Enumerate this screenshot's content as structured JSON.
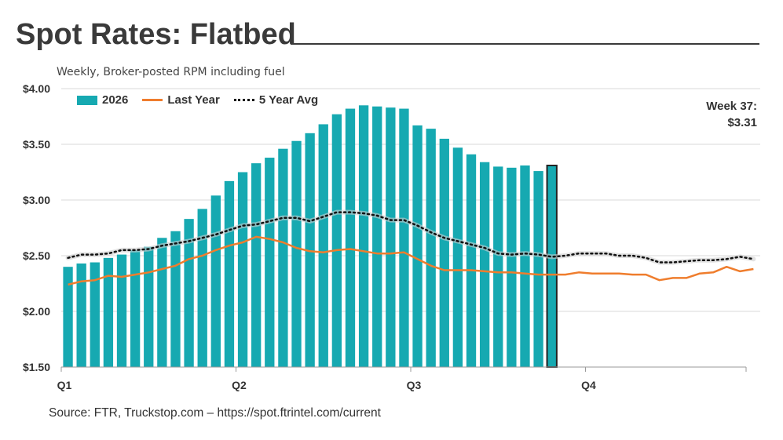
{
  "header": {
    "title": "Spot Rates: Flatbed",
    "subtitle": "Weekly, Broker-posted RPM including fuel"
  },
  "callout": {
    "line1": "Week 37:",
    "line2": "$3.31"
  },
  "source": "Source: FTR, Truckstop.com – https://spot.ftrintel.com/current",
  "colors": {
    "bars": "#16a9b1",
    "last_year": "#ef7d2d",
    "five_year": "#111111",
    "highlight_border": "#222222"
  },
  "legend": {
    "bars_label": "2026",
    "last_year_label": "Last Year",
    "five_year_label": "5 Year Avg"
  },
  "chart_data": {
    "type": "bar",
    "ylim": [
      1.5,
      4.0
    ],
    "y_ticks": [
      "$1.50",
      "$2.00",
      "$2.50",
      "$3.00",
      "$3.50",
      "$4.00"
    ],
    "y_tick_values": [
      1.5,
      2.0,
      2.5,
      3.0,
      3.5,
      4.0
    ],
    "x_ticks": [
      "Q1",
      "Q2",
      "Q3",
      "Q4"
    ],
    "x_tick_weeks": [
      1,
      14,
      27,
      40
    ],
    "grid": true,
    "legend_position": "top-left",
    "highlight_week": 37,
    "series": [
      {
        "name": "2026",
        "type": "bar",
        "values": [
          2.4,
          2.43,
          2.44,
          2.48,
          2.51,
          2.55,
          2.58,
          2.66,
          2.72,
          2.83,
          2.92,
          3.04,
          3.17,
          3.25,
          3.33,
          3.38,
          3.46,
          3.53,
          3.6,
          3.68,
          3.77,
          3.82,
          3.85,
          3.84,
          3.83,
          3.82,
          3.67,
          3.64,
          3.55,
          3.47,
          3.41,
          3.34,
          3.3,
          3.29,
          3.31,
          3.26,
          3.31
        ]
      },
      {
        "name": "Last Year",
        "type": "line",
        "values": [
          2.24,
          2.27,
          2.28,
          2.32,
          2.31,
          2.33,
          2.35,
          2.38,
          2.41,
          2.47,
          2.5,
          2.55,
          2.59,
          2.62,
          2.67,
          2.65,
          2.62,
          2.57,
          2.54,
          2.53,
          2.55,
          2.56,
          2.54,
          2.52,
          2.52,
          2.53,
          2.47,
          2.41,
          2.37,
          2.37,
          2.37,
          2.36,
          2.35,
          2.35,
          2.34,
          2.33,
          2.33,
          2.33,
          2.35,
          2.34,
          2.34,
          2.34,
          2.33,
          2.33,
          2.28,
          2.3,
          2.3,
          2.34,
          2.35,
          2.4,
          2.36,
          2.38
        ]
      },
      {
        "name": "5 Year Avg",
        "type": "line",
        "values": [
          2.48,
          2.51,
          2.51,
          2.52,
          2.55,
          2.55,
          2.56,
          2.59,
          2.61,
          2.63,
          2.66,
          2.69,
          2.73,
          2.77,
          2.78,
          2.81,
          2.84,
          2.84,
          2.81,
          2.85,
          2.89,
          2.89,
          2.88,
          2.86,
          2.82,
          2.82,
          2.77,
          2.71,
          2.66,
          2.63,
          2.6,
          2.57,
          2.52,
          2.51,
          2.52,
          2.51,
          2.49,
          2.5,
          2.52,
          2.52,
          2.52,
          2.5,
          2.5,
          2.48,
          2.44,
          2.44,
          2.45,
          2.46,
          2.46,
          2.47,
          2.49,
          2.47
        ]
      }
    ]
  }
}
